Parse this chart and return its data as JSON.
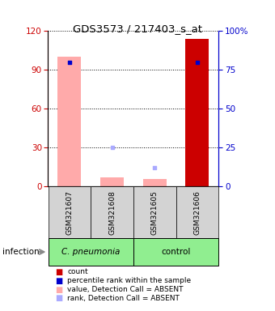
{
  "title": "GDS3573 / 217403_s_at",
  "samples": [
    "GSM321607",
    "GSM321608",
    "GSM321605",
    "GSM321606"
  ],
  "bar_bg_color": "#d3d3d3",
  "plot_bg_color": "#ffffff",
  "left_yticks": [
    0,
    30,
    60,
    90,
    120
  ],
  "right_yticks": [
    0,
    25,
    50,
    75,
    100
  ],
  "ylim_left": [
    0,
    120
  ],
  "ylim_right": [
    0,
    100
  ],
  "pink_bars": [
    100,
    7,
    6,
    0
  ],
  "red_bars": [
    0,
    0,
    0,
    114
  ],
  "blue_squares": [
    80,
    0,
    0,
    80
  ],
  "light_blue_squares": [
    0,
    25,
    12,
    0
  ],
  "legend_items": [
    {
      "color": "#cc0000",
      "label": "count"
    },
    {
      "color": "#0000cc",
      "label": "percentile rank within the sample"
    },
    {
      "color": "#ffaaaa",
      "label": "value, Detection Call = ABSENT"
    },
    {
      "color": "#aaaaff",
      "label": "rank, Detection Call = ABSENT"
    }
  ],
  "infection_label": "infection",
  "left_axis_color": "#cc0000",
  "right_axis_color": "#0000cc",
  "cpneumonia_label": "C. pneumonia",
  "control_label": "control",
  "group_color": "#90EE90"
}
